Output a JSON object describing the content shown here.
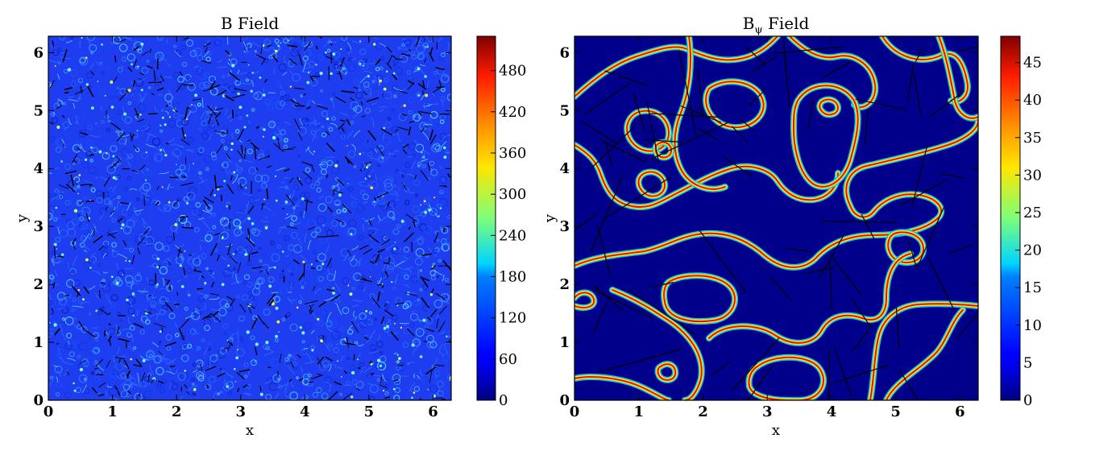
{
  "chart_data": [
    {
      "type": "heatmap",
      "title": "B Field",
      "xlabel": "x",
      "ylabel": "y",
      "xlim": [
        0,
        6.283
      ],
      "ylim": [
        0,
        6.283
      ],
      "xticks": [
        0,
        1,
        2,
        3,
        4,
        5,
        6
      ],
      "yticks": [
        0,
        1,
        2,
        3,
        4,
        5,
        6
      ],
      "colormap": "jet",
      "colorbar": {
        "ticks": [
          0,
          60,
          120,
          180,
          240,
          300,
          360,
          420,
          480
        ],
        "range": [
          0,
          530
        ]
      },
      "field_description": "turbulent small-scale field, mostly 40-150, scattered peaks up to ~300",
      "overlay": "black arrows (field vectors), dense and short",
      "grid": false
    },
    {
      "type": "heatmap",
      "title": "Bψ Field",
      "title_main": "B",
      "title_sub": "ψ",
      "title_suffix": " Field",
      "xlabel": "x",
      "ylabel": "y",
      "xlim": [
        0,
        6.283
      ],
      "ylim": [
        0,
        6.283
      ],
      "xticks": [
        0,
        1,
        2,
        3,
        4,
        5,
        6
      ],
      "yticks": [
        0,
        1,
        2,
        3,
        4,
        5,
        6
      ],
      "colormap": "jet",
      "colorbar": {
        "ticks": [
          0,
          5,
          10,
          15,
          20,
          25,
          30,
          35,
          40,
          45
        ],
        "range": [
          0,
          48.5
        ]
      },
      "field_description": "near-zero background with thin closed contour bands peaking ~45",
      "overlay": "long black arrows (field vectors), sparse",
      "grid": false
    }
  ],
  "colors": {
    "jet_low": "#00007f",
    "jet_high": "#800000",
    "b_field_base": "#1e3cf0",
    "b_psi_background": "#00008b",
    "arrows": "#000000"
  }
}
